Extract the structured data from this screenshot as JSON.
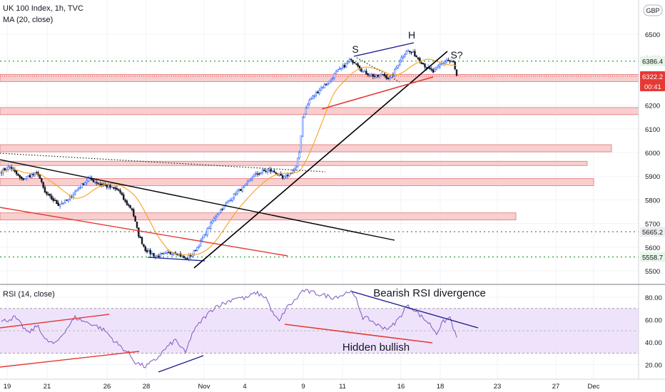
{
  "header": {
    "symbol_line": "UK 100 Index, 1h, TVC",
    "indicator_line": "MA (20, close)",
    "rsi_line": "RSI (14, close)",
    "currency_badge": "GBP",
    "price_tag": "6322.2",
    "countdown": "00:41"
  },
  "colors": {
    "up": "#2962ff",
    "down": "#131722",
    "ma": "#f7a21b",
    "rsi": "#7e57c2",
    "zone_fill": "#f8c5c5",
    "zone_border": "#e57373",
    "trend_red": "#e53935",
    "trend_black": "#000000",
    "trend_purple": "#1a1a8c",
    "dotted_green": "#4caf50",
    "price_tag_red": "#e53935"
  },
  "chart_data": [
    {
      "type": "candlestick",
      "title": "UK 100 Index, 1h, TVC",
      "ylim": [
        5460,
        6590
      ],
      "y_ticks": [
        5500,
        5600,
        5700,
        5800,
        5900,
        6000,
        6100,
        6200,
        6300,
        6400,
        6500
      ],
      "x_ticks": [
        "19",
        "21",
        "26",
        "28",
        "Nov",
        "4",
        "9",
        "11",
        "16",
        "18",
        "23",
        "27",
        "Dec"
      ],
      "price_labels": [
        {
          "value": 6386.4,
          "label": "6386.4"
        },
        {
          "value": 6322.2,
          "label": "6322.2"
        },
        {
          "value": 5665.2,
          "label": "5665.2"
        },
        {
          "value": 5558.7,
          "label": "5558.7"
        }
      ],
      "annotations": [
        "S",
        "H",
        "S?"
      ],
      "close_anchors": [
        [
          0,
          5920
        ],
        [
          5,
          5940
        ],
        [
          12,
          5885
        ],
        [
          18,
          5905
        ],
        [
          22,
          5910
        ],
        [
          26,
          5830
        ],
        [
          34,
          5780
        ],
        [
          40,
          5800
        ],
        [
          46,
          5850
        ],
        [
          52,
          5890
        ],
        [
          58,
          5870
        ],
        [
          64,
          5855
        ],
        [
          70,
          5840
        ],
        [
          74,
          5790
        ],
        [
          78,
          5760
        ],
        [
          82,
          5650
        ],
        [
          86,
          5590
        ],
        [
          92,
          5560
        ],
        [
          98,
          5570
        ],
        [
          104,
          5580
        ],
        [
          110,
          5550
        ],
        [
          114,
          5570
        ],
        [
          118,
          5610
        ],
        [
          122,
          5660
        ],
        [
          126,
          5710
        ],
        [
          130,
          5750
        ],
        [
          134,
          5780
        ],
        [
          140,
          5830
        ],
        [
          146,
          5860
        ],
        [
          150,
          5900
        ],
        [
          156,
          5920
        ],
        [
          160,
          5925
        ],
        [
          164,
          5915
        ],
        [
          168,
          5890
        ],
        [
          172,
          5910
        ],
        [
          176,
          5940
        ],
        [
          178,
          6000
        ],
        [
          180,
          6150
        ],
        [
          184,
          6220
        ],
        [
          188,
          6250
        ],
        [
          192,
          6280
        ],
        [
          196,
          6300
        ],
        [
          200,
          6340
        ],
        [
          204,
          6360
        ],
        [
          208,
          6390
        ],
        [
          212,
          6380
        ],
        [
          216,
          6340
        ],
        [
          220,
          6330
        ],
        [
          224,
          6320
        ],
        [
          228,
          6330
        ],
        [
          232,
          6310
        ],
        [
          234,
          6330
        ],
        [
          238,
          6390
        ],
        [
          242,
          6430
        ],
        [
          246,
          6420
        ],
        [
          250,
          6390
        ],
        [
          254,
          6360
        ],
        [
          258,
          6340
        ],
        [
          262,
          6370
        ],
        [
          266,
          6390
        ],
        [
          270,
          6380
        ],
        [
          272,
          6322
        ]
      ]
    },
    {
      "type": "line",
      "title": "RSI (14, close)",
      "ylim": [
        10,
        92
      ],
      "y_ticks": [
        20,
        40,
        60,
        80
      ],
      "band": [
        30,
        70
      ],
      "annotations": [
        "Bearish RSI divergence",
        "Hidden bullish"
      ],
      "rsi_anchors": [
        [
          0,
          58
        ],
        [
          8,
          62
        ],
        [
          16,
          48
        ],
        [
          22,
          55
        ],
        [
          26,
          42
        ],
        [
          32,
          38
        ],
        [
          38,
          50
        ],
        [
          44,
          62
        ],
        [
          50,
          58
        ],
        [
          56,
          55
        ],
        [
          62,
          50
        ],
        [
          68,
          40
        ],
        [
          72,
          35
        ],
        [
          76,
          30
        ],
        [
          80,
          22
        ],
        [
          86,
          18
        ],
        [
          92,
          24
        ],
        [
          98,
          34
        ],
        [
          104,
          42
        ],
        [
          110,
          30
        ],
        [
          114,
          48
        ],
        [
          120,
          60
        ],
        [
          128,
          72
        ],
        [
          134,
          75
        ],
        [
          140,
          80
        ],
        [
          146,
          79
        ],
        [
          152,
          84
        ],
        [
          158,
          80
        ],
        [
          162,
          66
        ],
        [
          166,
          58
        ],
        [
          170,
          70
        ],
        [
          176,
          78
        ],
        [
          180,
          86
        ],
        [
          186,
          84
        ],
        [
          192,
          82
        ],
        [
          198,
          80
        ],
        [
          204,
          82
        ],
        [
          208,
          86
        ],
        [
          212,
          78
        ],
        [
          216,
          62
        ],
        [
          220,
          60
        ],
        [
          226,
          54
        ],
        [
          232,
          52
        ],
        [
          238,
          62
        ],
        [
          242,
          72
        ],
        [
          246,
          70
        ],
        [
          250,
          64
        ],
        [
          256,
          56
        ],
        [
          260,
          48
        ],
        [
          264,
          58
        ],
        [
          268,
          62
        ],
        [
          272,
          43
        ]
      ]
    }
  ]
}
